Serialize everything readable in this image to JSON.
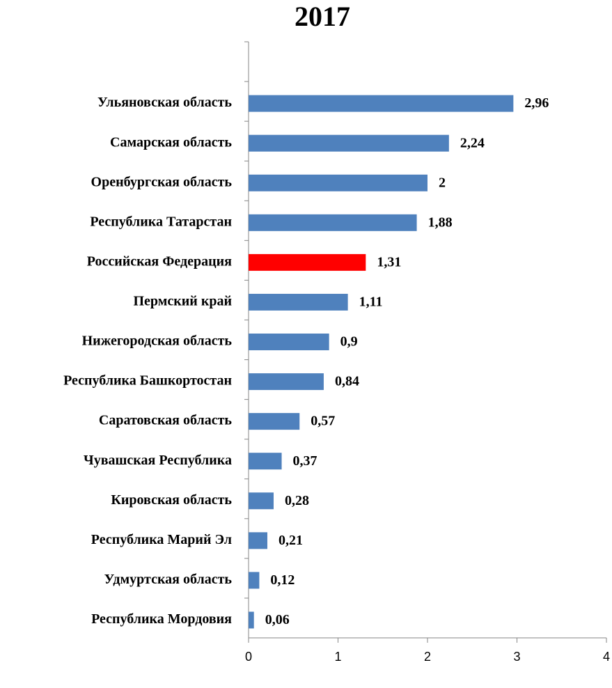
{
  "chart_data": {
    "type": "bar",
    "orientation": "horizontal",
    "title": "2017",
    "categories": [
      null,
      "Ульяновская область",
      "Самарская область",
      "Оренбургская область",
      "Республика Татарстан",
      "Российская Федерация",
      "Пермский край",
      "Нижегородская область",
      "Республика Башкортостан",
      "Саратовская область",
      "Чувашская Республика",
      "Кировская область",
      "Республика Марий Эл",
      "Удмуртская область",
      "Республика Мордовия"
    ],
    "values": [
      null,
      2.96,
      2.24,
      2,
      1.88,
      1.31,
      1.11,
      0.9,
      0.84,
      0.57,
      0.37,
      0.28,
      0.21,
      0.12,
      0.06
    ],
    "value_labels": [
      null,
      "2,96",
      "2,24",
      "2",
      "1,88",
      "1,31",
      "1,11",
      "0,9",
      "0,84",
      "0,57",
      "0,37",
      "0,28",
      "0,21",
      "0,12",
      "0,06"
    ],
    "colors": [
      null,
      "#4f81bd",
      "#4f81bd",
      "#4f81bd",
      "#4f81bd",
      "#ff0000",
      "#4f81bd",
      "#4f81bd",
      "#4f81bd",
      "#4f81bd",
      "#4f81bd",
      "#4f81bd",
      "#4f81bd",
      "#4f81bd",
      "#4f81bd"
    ],
    "xlim": [
      0,
      4
    ],
    "xticks": [
      0,
      1,
      2,
      3,
      4
    ],
    "grid": false
  }
}
